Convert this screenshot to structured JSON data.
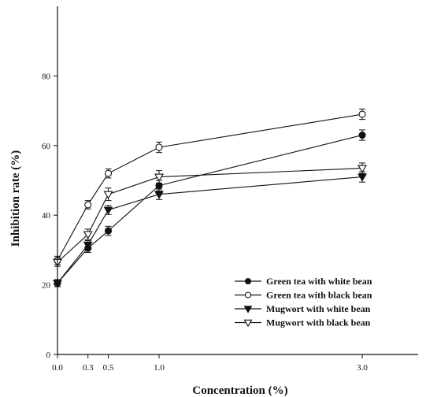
{
  "chart_data": {
    "type": "line",
    "title": "",
    "xlabel": "Concentration (%)",
    "ylabel": "Inhibition rate (%)",
    "xlim": [
      0,
      3.55
    ],
    "ylim": [
      0,
      100
    ],
    "x_ticks": [
      0.0,
      0.3,
      0.5,
      1.0,
      3.0
    ],
    "x_tick_labels": [
      "0.0",
      "0.3",
      "0.5",
      "1.0",
      "3.0"
    ],
    "y_ticks": [
      0,
      20,
      40,
      60,
      80
    ],
    "y_tick_labels": [
      "0",
      "20",
      "40",
      "60",
      "80"
    ],
    "grid": false,
    "legend_position": "bottom-right",
    "x": [
      0.0,
      0.3,
      0.5,
      1.0,
      3.0
    ],
    "series": [
      {
        "name": "Green tea with white bean",
        "marker": "circle-filled",
        "values": [
          20.5,
          30.5,
          35.5,
          48.5,
          63.0
        ],
        "errors": [
          1.0,
          1.2,
          1.3,
          1.5,
          1.5
        ]
      },
      {
        "name": "Green tea with black bean",
        "marker": "circle-open",
        "values": [
          27.0,
          43.0,
          52.0,
          59.5,
          69.0
        ],
        "errors": [
          1.2,
          1.2,
          1.3,
          1.5,
          1.5
        ]
      },
      {
        "name": "Mugwort with white bean",
        "marker": "triangle-down-filled",
        "values": [
          20.5,
          31.5,
          41.5,
          46.0,
          51.0
        ],
        "errors": [
          1.0,
          1.2,
          1.3,
          1.5,
          1.5
        ]
      },
      {
        "name": "Mugwort with black bean",
        "marker": "triangle-down-open",
        "values": [
          26.5,
          34.5,
          46.0,
          51.0,
          53.5
        ],
        "errors": [
          1.2,
          1.5,
          1.8,
          1.8,
          1.5
        ]
      }
    ]
  }
}
